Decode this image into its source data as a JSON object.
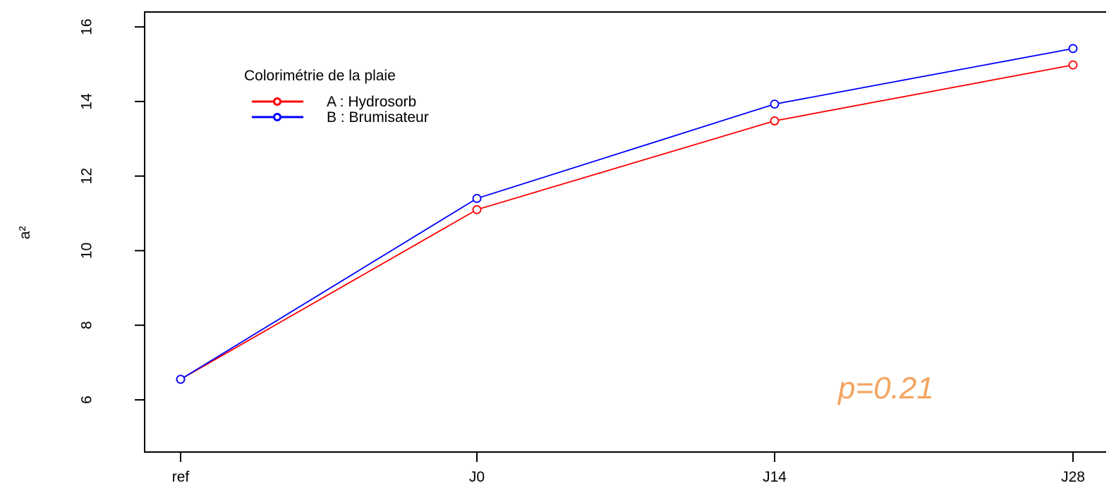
{
  "chart_data": {
    "type": "line",
    "title": "",
    "xlabel": "",
    "ylabel": "a²",
    "categories": [
      "ref",
      "J0",
      "J14",
      "J28"
    ],
    "y_ticks": [
      "6",
      "8",
      "10",
      "12",
      "14",
      "16"
    ],
    "ylim": [
      4.6,
      16.4
    ],
    "grid": false,
    "legend": {
      "title": "Colorimétrie de la plaie",
      "placement": "top-left"
    },
    "series": [
      {
        "name": "A : Hydrosorb",
        "color": "#ff0000",
        "values": [
          6.55,
          11.1,
          13.48,
          14.98
        ]
      },
      {
        "name": "B : Brumisateur",
        "color": "#0000ff",
        "values": [
          6.55,
          11.4,
          13.93,
          15.42
        ]
      }
    ],
    "annotation": {
      "text": "p=0.21",
      "color": "#f4a460"
    }
  }
}
